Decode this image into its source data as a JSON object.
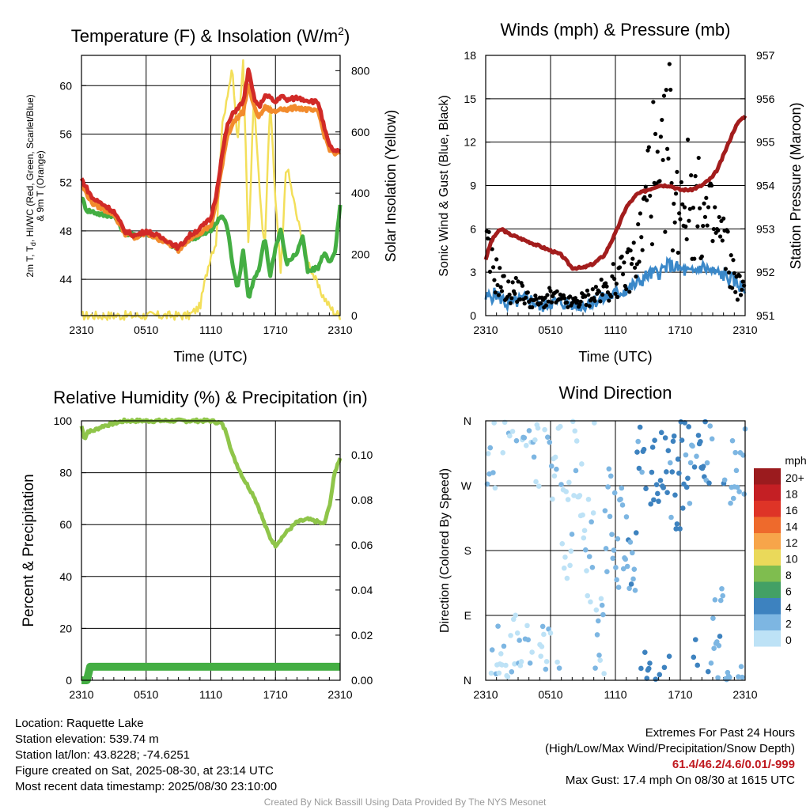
{
  "panels": {
    "temp": {
      "title": "Temperature (F) & Insolation (W/m",
      "title_sup": "2",
      "title_end": ")",
      "ylabel_line1": "2m T, T",
      "ylabel_sub": "d",
      "ylabel_line1_end": ", HI/WC (Red, Green, Scarlet/Blue)",
      "ylabel_line2": "& 9m T (Orange)",
      "y2label": "Solar Insolation (Yellow)",
      "xlabel": "Time (UTC)"
    },
    "wind": {
      "title": "Winds (mph) & Pressure (mb)",
      "ylabel": "Sonic Wind & Gust (Blue, Black)",
      "y2label": "Station Pressure (Maroon)",
      "xlabel": "Time (UTC)"
    },
    "rh": {
      "title": "Relative Humidity (%) & Precipitation (in)",
      "ylabel": "Percent & Precipitation"
    },
    "dir": {
      "title": "Wind Direction",
      "ylabel": "Direction (Colored By Speed)",
      "legend_title": "mph"
    }
  },
  "x_ticks": [
    "2310",
    "0510",
    "1110",
    "1710",
    "2310"
  ],
  "chart_data": [
    {
      "id": "temp",
      "type": "line",
      "title": "Temperature (F) & Insolation (W/m2)",
      "xlabel": "Time (UTC)",
      "ylabel": "2m T, Td, HI/WC (Red, Green, Scarlet/Blue) & 9m T (Orange)",
      "y2label": "Solar Insolation (Yellow)",
      "x_categories": [
        "2310",
        "0510",
        "1110",
        "1710",
        "2310"
      ],
      "ylim": [
        41,
        62.5
      ],
      "y_ticks": [
        44,
        48,
        52,
        56,
        60
      ],
      "y2lim": [
        0,
        850
      ],
      "y2_ticks": [
        0,
        200,
        400,
        600,
        800
      ],
      "grid": true,
      "series": [
        {
          "name": "2m T (Red)",
          "color": "#d12a27",
          "axis": "left",
          "x": [
            0,
            0.5,
            1,
            2,
            3,
            4,
            5,
            6,
            7,
            8,
            9,
            10,
            11,
            12,
            12.5,
            13,
            13.5,
            14,
            14.5,
            15,
            15.5,
            16,
            16.5,
            17,
            17.5,
            18,
            18.5,
            19,
            20,
            21,
            22,
            22.5,
            23,
            23.5,
            24
          ],
          "values": [
            52.3,
            51.5,
            50.7,
            50.2,
            49.6,
            48.0,
            47.6,
            48.0,
            47.6,
            47.2,
            46.6,
            47.6,
            48.2,
            49.0,
            51.0,
            54.0,
            56.6,
            57.6,
            58.2,
            58.6,
            61.3,
            59.0,
            58.2,
            59.2,
            59.0,
            58.6,
            59.2,
            58.8,
            59.0,
            58.8,
            58.6,
            56.6,
            55.0,
            54.6,
            54.5
          ]
        },
        {
          "name": "9m T (Orange)",
          "color": "#f28b2c",
          "axis": "left",
          "x": [
            0,
            1,
            2,
            3,
            4,
            5,
            6,
            7,
            8,
            9,
            10,
            11,
            12,
            12.5,
            13,
            13.5,
            14,
            14.5,
            15,
            15.5,
            16,
            16.5,
            17,
            17.5,
            18,
            18.5,
            19,
            20,
            21,
            22,
            22.5,
            23,
            23.5,
            24
          ],
          "values": [
            51.8,
            50.3,
            49.8,
            49.4,
            47.8,
            47.4,
            47.8,
            47.4,
            47.0,
            46.4,
            47.4,
            47.8,
            48.4,
            50.3,
            53.2,
            55.8,
            56.8,
            57.4,
            57.8,
            60.2,
            58.2,
            57.4,
            58.2,
            58.0,
            57.8,
            58.2,
            58.0,
            58.2,
            58.0,
            57.8,
            56.0,
            54.8,
            54.4,
            54.4
          ]
        },
        {
          "name": "Td (Green)",
          "color": "#44ae43",
          "axis": "left",
          "x": [
            0,
            0.5,
            1,
            2,
            3,
            4,
            5,
            6,
            7,
            8,
            9,
            10,
            11,
            12,
            12.5,
            13,
            13.5,
            14,
            14.5,
            15,
            15.5,
            16,
            16.5,
            17,
            17.5,
            18,
            18.5,
            19,
            20,
            20.5,
            21,
            22,
            22.5,
            23,
            23.5,
            24
          ],
          "values": [
            50.8,
            49.7,
            49.6,
            49.3,
            49.3,
            47.8,
            47.6,
            47.8,
            47.5,
            47.0,
            46.5,
            47.3,
            47.6,
            48.0,
            48.6,
            49.3,
            48.5,
            45.4,
            43.2,
            46.5,
            42.4,
            44.0,
            44.8,
            47.5,
            44.3,
            46.6,
            48.2,
            45.3,
            46.2,
            47.6,
            44.6,
            45.0,
            46.2,
            45.5,
            46.0,
            50.0
          ]
        },
        {
          "name": "Solar Insolation (Yellow)",
          "color": "#f3df5a",
          "axis": "right",
          "x": [
            0,
            1,
            2,
            3,
            4,
            5,
            6,
            7,
            8,
            9,
            10,
            11,
            11.5,
            12,
            12.5,
            13,
            13.5,
            14,
            14.5,
            15,
            15.5,
            16,
            16.5,
            17,
            17.5,
            18,
            18.5,
            19,
            20,
            21,
            22,
            22.5,
            23,
            23.5,
            24
          ],
          "values": [
            0,
            0,
            0,
            0,
            0,
            0,
            0,
            0,
            0,
            0,
            0,
            30,
            120,
            200,
            240,
            600,
            720,
            800,
            560,
            840,
            230,
            720,
            420,
            210,
            700,
            380,
            130,
            500,
            320,
            180,
            90,
            60,
            30,
            10,
            0
          ]
        }
      ]
    },
    {
      "id": "wind",
      "type": "line",
      "title": "Winds (mph) & Pressure (mb)",
      "xlabel": "Time (UTC)",
      "ylabel": "Sonic Wind & Gust (Blue, Black)",
      "y2label": "Station Pressure (Maroon)",
      "x_categories": [
        "2310",
        "0510",
        "1110",
        "1710",
        "2310"
      ],
      "ylim": [
        0,
        18
      ],
      "y_ticks": [
        0,
        3,
        6,
        9,
        12,
        15,
        18
      ],
      "y2lim": [
        951,
        957
      ],
      "y2_ticks": [
        951,
        952,
        953,
        954,
        955,
        956,
        957
      ],
      "grid": true,
      "series": [
        {
          "name": "Sonic Wind (Blue)",
          "color": "#3a88c9",
          "axis": "left",
          "x": [
            0,
            1,
            2,
            3,
            4,
            5,
            6,
            7,
            8,
            9,
            10,
            11,
            12,
            13,
            14,
            15,
            16,
            17,
            18,
            19,
            20,
            21,
            22,
            23,
            24
          ],
          "values": [
            1.2,
            1.5,
            0.8,
            1.0,
            1.2,
            0.6,
            0.9,
            0.9,
            0.8,
            0.7,
            1.0,
            1.2,
            1.5,
            1.8,
            2.2,
            2.8,
            3.0,
            3.5,
            3.2,
            2.9,
            3.4,
            3.0,
            2.8,
            2.4,
            1.8
          ]
        },
        {
          "name": "Gust (Black)",
          "type": "scatter",
          "color": "#000000",
          "axis": "left",
          "x": [
            0,
            1,
            2,
            3,
            4,
            5,
            6,
            7,
            8,
            9,
            10,
            11,
            12,
            13,
            14,
            14.5,
            15,
            15.5,
            16,
            17,
            17.5,
            18,
            19,
            20,
            21,
            22,
            23,
            24
          ],
          "values": [
            6.2,
            3.8,
            2.2,
            2.5,
            1.5,
            1.2,
            1.8,
            1.4,
            1.2,
            1.5,
            2.0,
            2.4,
            3.5,
            4.0,
            6.0,
            8.0,
            12.5,
            14.0,
            10.5,
            17.4,
            9.0,
            12.0,
            11.0,
            9.5,
            8.5,
            7.0,
            3.5,
            2.0
          ]
        },
        {
          "name": "Station Pressure (Maroon)",
          "color": "#a31d1d",
          "axis": "right",
          "x": [
            0,
            0.5,
            1,
            1.5,
            2,
            3,
            4,
            5,
            6,
            7,
            8,
            9,
            10,
            11,
            12,
            12.5,
            13,
            14,
            15,
            16,
            17,
            18,
            19,
            20,
            21,
            21.5,
            22,
            22.5,
            23,
            23.5,
            24
          ],
          "values": [
            952.3,
            952.7,
            952.9,
            953.0,
            952.9,
            952.8,
            952.7,
            952.6,
            952.5,
            952.4,
            952.1,
            952.1,
            952.2,
            952.4,
            952.9,
            953.2,
            953.5,
            953.8,
            953.9,
            954.0,
            954.0,
            953.9,
            953.9,
            954.0,
            954.2,
            954.4,
            954.7,
            955.0,
            955.3,
            955.5,
            955.6
          ]
        }
      ]
    },
    {
      "id": "rh",
      "type": "line",
      "title": "Relative Humidity (%) & Precipitation (in)",
      "ylabel": "Percent & Precipitation",
      "x_categories": [
        "2310",
        "0510",
        "1110",
        "1710",
        "2310"
      ],
      "ylim": [
        0,
        100
      ],
      "y_ticks": [
        0,
        20,
        40,
        60,
        80,
        100
      ],
      "y2lim": [
        0,
        0.115
      ],
      "y2_ticks": [
        0.0,
        0.02,
        0.04,
        0.06,
        0.08,
        0.1
      ],
      "grid": true,
      "series": [
        {
          "name": "RH",
          "color": "#8fc54a",
          "axis": "left",
          "x": [
            0,
            0.3,
            0.6,
            1,
            2,
            3,
            4,
            6,
            8,
            10,
            11,
            12,
            13,
            13.5,
            14,
            15,
            16,
            16.5,
            17,
            17.5,
            18,
            19,
            20,
            21,
            22,
            22.5,
            23,
            23.5,
            24
          ],
          "values": [
            98,
            93,
            96,
            96,
            98,
            99,
            100,
            100,
            100,
            100,
            100,
            100,
            99,
            95,
            87,
            78,
            71,
            66,
            60,
            55,
            52,
            57,
            61,
            62,
            61,
            60,
            67,
            80,
            86
          ]
        },
        {
          "name": "Precipitation",
          "color": "#44ae43",
          "axis": "right",
          "x": [
            0,
            0.5,
            0.8,
            24
          ],
          "values": [
            0.0,
            0.0,
            0.006,
            0.006
          ]
        }
      ]
    },
    {
      "id": "dir",
      "type": "scatter",
      "title": "Wind Direction",
      "ylabel": "Direction (Colored By Speed)",
      "x_categories": [
        "2310",
        "0510",
        "1110",
        "1710",
        "2310"
      ],
      "y_categories": [
        "N",
        "E",
        "S",
        "W",
        "N"
      ],
      "ylim": [
        0,
        360
      ],
      "grid": true,
      "legend": {
        "title": "mph",
        "placement": "right",
        "labels": [
          "20+",
          "18",
          "16",
          "14",
          "12",
          "10",
          "8",
          "6",
          "4",
          "2",
          "0"
        ],
        "colors": [
          "#9b1b1e",
          "#c41f24",
          "#de3427",
          "#ee6a2c",
          "#f7a54a",
          "#ead95a",
          "#7fbd4f",
          "#43a065",
          "#3d82bf",
          "#7db6e2",
          "#bde2f6"
        ]
      },
      "series": [
        {
          "name": "Direction vs time",
          "x": [
            0.5,
            1,
            2,
            3,
            4,
            5,
            6,
            7,
            8,
            9,
            10,
            11,
            12,
            13,
            14,
            15,
            16,
            17,
            18,
            19,
            20,
            21,
            22,
            23
          ],
          "values": [
            330,
            25,
            40,
            20,
            330,
            15,
            320,
            200,
            300,
            180,
            40,
            220,
            200,
            170,
            330,
            310,
            320,
            280,
            300,
            10,
            320,
            70,
            310,
            330
          ],
          "speeds": [
            1,
            0.5,
            0.5,
            0.8,
            0.8,
            0.5,
            1.2,
            0.6,
            0.6,
            0.5,
            1.0,
            1.5,
            2.0,
            2.5,
            3.0,
            3.5,
            3.8,
            3.2,
            4.0,
            3.0,
            3.5,
            2.5,
            2.8,
            2.0
          ]
        }
      ]
    }
  ],
  "info": {
    "location": "Location: Raquette Lake",
    "elevation": "Station elevation: 539.74 m",
    "latlon": "Station lat/lon: 43.8228; -74.6251",
    "created": "Figure created on Sat, 2025-08-30, at 23:14 UTC",
    "recent": "Most recent data timestamp: 2025/08/30 23:10:00"
  },
  "extremes": {
    "title": "Extremes For Past 24 Hours",
    "subtitle": "(High/Low/Max Wind/Precipitation/Snow Depth)",
    "values": "61.4/46.2/4.6/0.01/-999",
    "gust": "Max Gust: 17.4 mph On 08/30 at 1615 UTC"
  },
  "credit": "Created By Nick Bassill Using Data Provided By The NYS Mesonet"
}
